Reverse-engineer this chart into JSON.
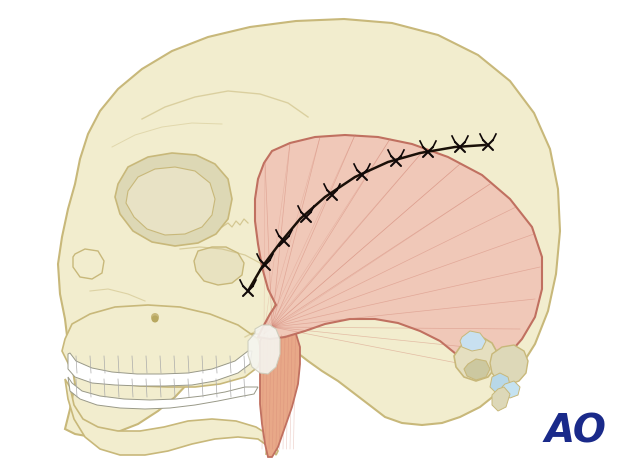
{
  "bg_color": "#ffffff",
  "skull_fill": "#f2edce",
  "skull_edge": "#c8b87a",
  "skull_edge2": "#b8a860",
  "muscle_fill_light": "#f0c8b8",
  "muscle_fill_dark": "#e8a090",
  "muscle_edge": "#c07060",
  "fiber_color": "#d08070",
  "fascia_fill": "#f0f0f0",
  "suture_color": "#1a1008",
  "knot_color": "#100808",
  "ao_color": "#1a2a8a",
  "ao_text": "AO"
}
